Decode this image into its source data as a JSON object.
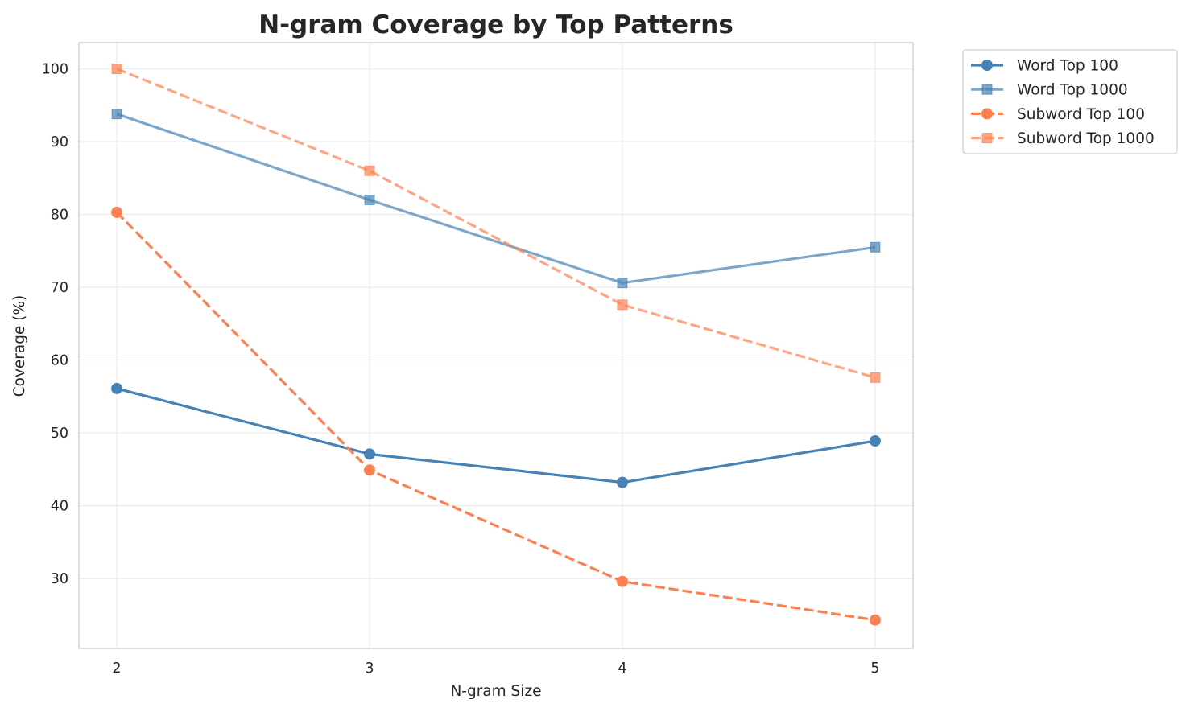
{
  "chart_data": {
    "type": "line",
    "title": "N-gram Coverage by Top Patterns",
    "xlabel": "N-gram Size",
    "ylabel": "Coverage (%)",
    "x": [
      2,
      3,
      4,
      5
    ],
    "x_ticks": [
      "2",
      "3",
      "4",
      "5"
    ],
    "y_ticks": [
      "30",
      "40",
      "50",
      "60",
      "70",
      "80",
      "90",
      "100"
    ],
    "xlim": [
      1.85,
      5.15
    ],
    "ylim": [
      20.4,
      103.6
    ],
    "grid": true,
    "legend_position": "outside-top-right",
    "series": [
      {
        "name": "Word Top 100",
        "values": [
          56.1,
          47.1,
          43.2,
          48.9
        ],
        "color": "#4682b4",
        "marker": "circle",
        "line_style": "solid",
        "opacity": 1.0
      },
      {
        "name": "Word Top 1000",
        "values": [
          93.8,
          82.0,
          70.6,
          75.5
        ],
        "color": "#4682b4",
        "marker": "square",
        "line_style": "solid",
        "opacity": 0.7
      },
      {
        "name": "Subword Top 100",
        "values": [
          80.3,
          44.9,
          29.6,
          24.3
        ],
        "color": "#ff7f50",
        "marker": "circle",
        "line_style": "dashed",
        "opacity": 1.0
      },
      {
        "name": "Subword Top 1000",
        "values": [
          100.0,
          86.0,
          67.6,
          57.6
        ],
        "color": "#ff7f50",
        "marker": "square",
        "line_style": "dashed",
        "opacity": 0.7
      }
    ]
  }
}
